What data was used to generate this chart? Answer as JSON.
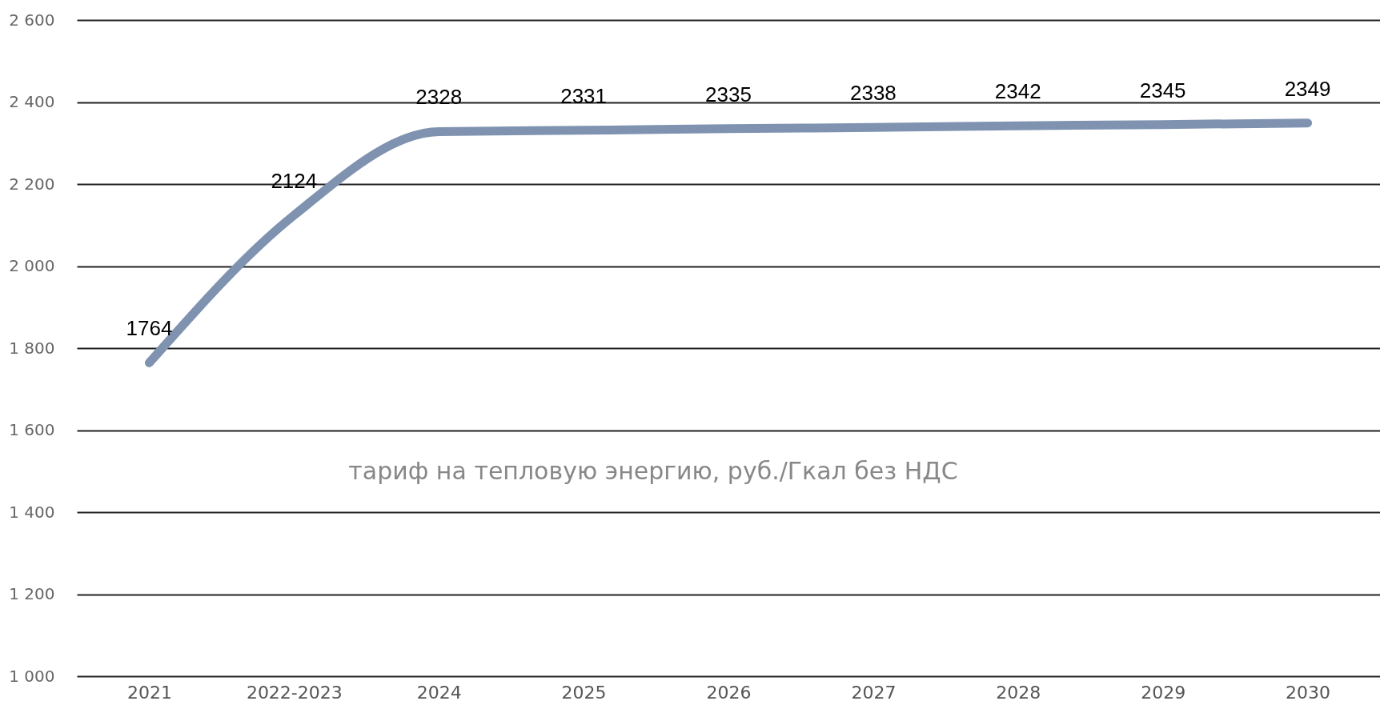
{
  "chart_data": {
    "type": "line",
    "categories": [
      "2021",
      "2022-2023",
      "2024",
      "2025",
      "2026",
      "2027",
      "2028",
      "2029",
      "2030"
    ],
    "series": [
      {
        "color": "#7f93b1",
        "values": [
          1764,
          2124,
          2328,
          2331,
          2335,
          2338,
          2342,
          2345,
          2349
        ]
      }
    ],
    "data_labels": true,
    "ylim": [
      1000,
      2600
    ],
    "yticks": [
      {
        "value": 1000,
        "label": "1 000"
      },
      {
        "value": 1200,
        "label": "1 200"
      },
      {
        "value": 1400,
        "label": "1 400"
      },
      {
        "value": 1600,
        "label": "1 600"
      },
      {
        "value": 1800,
        "label": "1 800"
      },
      {
        "value": 2000,
        "label": "2 000"
      },
      {
        "value": 2200,
        "label": "2 200"
      },
      {
        "value": 2400,
        "label": "2 400"
      },
      {
        "value": 2600,
        "label": "2 600"
      }
    ],
    "grid": "y",
    "marker": "none",
    "line_style": "solid",
    "annotations": [
      "тариф на тепловую энергию, руб./Гкал без НДС"
    ]
  }
}
